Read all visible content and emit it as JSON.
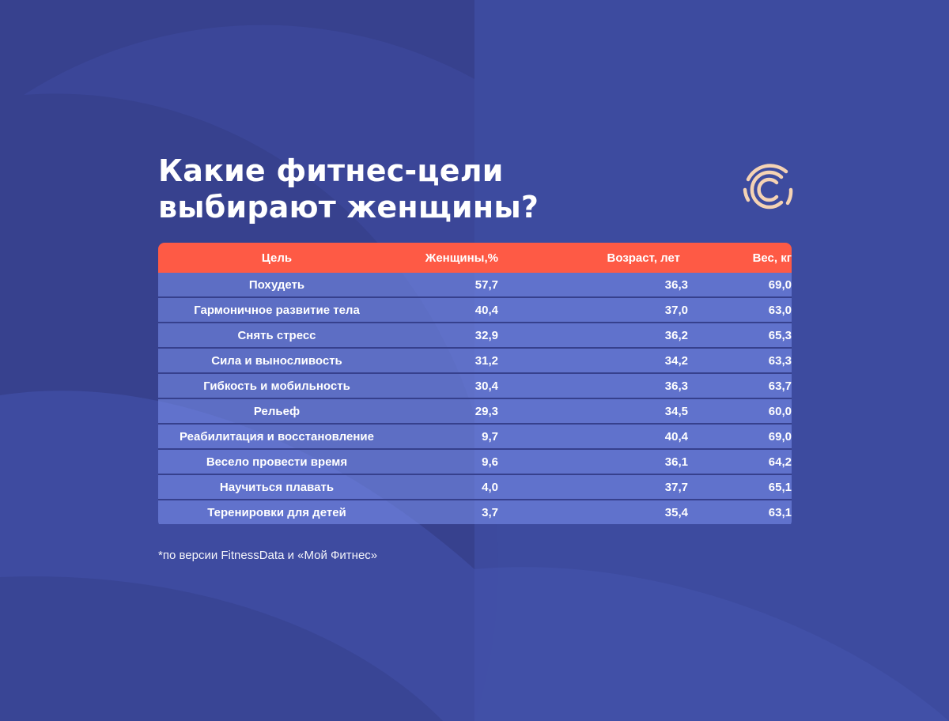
{
  "title_lines": [
    "Какие фитнес-цели",
    "выбирают женщины?"
  ],
  "colors": {
    "background": "#37418e",
    "header": "#fe5a45",
    "logo": "#f5d3b4"
  },
  "logo_icon": "concentric-c-logo-icon",
  "chart_data": {
    "type": "table",
    "columns": [
      "Цель",
      "Женщины,%",
      "Возраст, лет",
      "Вес, кг"
    ],
    "rows": [
      [
        "Похудеть",
        "57,7",
        "36,3",
        "69,0"
      ],
      [
        "Гармоничное развитие тела",
        "40,4",
        "37,0",
        "63,0"
      ],
      [
        "Снять стресс",
        "32,9",
        "36,2",
        "65,3"
      ],
      [
        "Сила и выносливость",
        "31,2",
        "34,2",
        "63,3"
      ],
      [
        "Гибкость и мобильность",
        "30,4",
        "36,3",
        "63,7"
      ],
      [
        "Рельеф",
        "29,3",
        "34,5",
        "60,0"
      ],
      [
        "Реабилитация и восстановление",
        "9,7",
        "40,4",
        "69,0"
      ],
      [
        "Весело провести время",
        "9,6",
        "36,1",
        "64,2"
      ],
      [
        "Научиться плавать",
        "4,0",
        "37,7",
        "65,1"
      ],
      [
        "Теренировки для детей",
        "3,7",
        "35,4",
        "63,1"
      ]
    ]
  },
  "footnote": "*по версии FitnessData и «Мой Фитнес»"
}
